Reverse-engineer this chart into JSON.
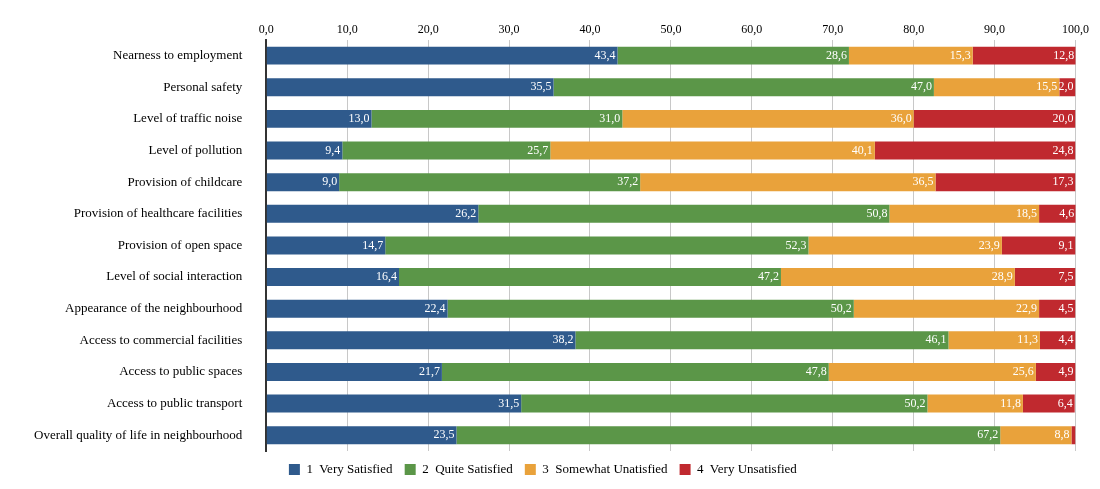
{
  "chart_data": {
    "type": "bar",
    "orientation": "horizontal",
    "stacked": true,
    "categories": [
      "Nearness to employment",
      "Personal safety",
      "Level of traffic noise",
      "Level of pollution",
      "Provision of childcare",
      "Provision of healthcare facilities",
      "Provision of open space",
      "Level of social interaction",
      "Appearance of the neighbourhood",
      "Access to commercial facilities",
      "Access to public spaces",
      "Access to public transport",
      "Overall quality of life in neighbourhood"
    ],
    "series": [
      {
        "name": "1  Very Satisfied",
        "color": "#2f5a8c",
        "values": [
          43.4,
          35.5,
          13.0,
          9.4,
          9.0,
          26.2,
          14.7,
          16.4,
          22.4,
          38.2,
          21.7,
          31.5,
          23.5
        ],
        "value_labels": [
          "43,4",
          "35,5",
          "13,0",
          "9,4",
          "9,0",
          "26,2",
          "14,7",
          "16,4",
          "22,4",
          "38,2",
          "21,7",
          "31,5",
          "23,5"
        ]
      },
      {
        "name": "2  Quite Satisfied",
        "color": "#5b9648",
        "values": [
          28.6,
          47.0,
          31.0,
          25.7,
          37.2,
          50.8,
          52.3,
          47.2,
          50.2,
          46.1,
          47.8,
          50.2,
          67.2
        ],
        "value_labels": [
          "28,6",
          "47,0",
          "31,0",
          "25,7",
          "37,2",
          "50,8",
          "52,3",
          "47,2",
          "50,2",
          "46,1",
          "47,8",
          "50,2",
          "67,2"
        ]
      },
      {
        "name": "3  Somewhat Unatisfied",
        "color": "#e9a23b",
        "values": [
          15.3,
          15.5,
          36.0,
          40.1,
          36.5,
          18.5,
          23.9,
          28.9,
          22.9,
          11.3,
          25.6,
          11.8,
          8.8
        ],
        "value_labels": [
          "15,3",
          "15,5",
          "36,0",
          "40,1",
          "36,5",
          "18,5",
          "23,9",
          "28,9",
          "22,9",
          "11,3",
          "25,6",
          "11,8",
          "8,8"
        ]
      },
      {
        "name": "4  Very Unsatisfied",
        "color": "#c0292f",
        "values": [
          12.8,
          2.0,
          20.0,
          24.8,
          17.3,
          4.6,
          9.1,
          7.5,
          4.5,
          4.4,
          4.9,
          6.4,
          0.5
        ],
        "value_labels": [
          "12,8",
          "2,0",
          "20,0",
          "24,8",
          "17,3",
          "4,6",
          "9,1",
          "7,5",
          "4,5",
          "4,4",
          "4,9",
          "6,4",
          null
        ]
      }
    ],
    "xlim": [
      0,
      100
    ],
    "xticks": [
      {
        "value": 0,
        "label": "0,0"
      },
      {
        "value": 10,
        "label": "10,0"
      },
      {
        "value": 20,
        "label": "20,0"
      },
      {
        "value": 30,
        "label": "30,0"
      },
      {
        "value": 40,
        "label": "40,0"
      },
      {
        "value": 50,
        "label": "50,0"
      },
      {
        "value": 60,
        "label": "60,0"
      },
      {
        "value": 70,
        "label": "70,0"
      },
      {
        "value": 80,
        "label": "80,0"
      },
      {
        "value": 90,
        "label": "90,0"
      },
      {
        "value": 100,
        "label": "100,0"
      }
    ],
    "grid": "x",
    "legend": "bottom"
  }
}
